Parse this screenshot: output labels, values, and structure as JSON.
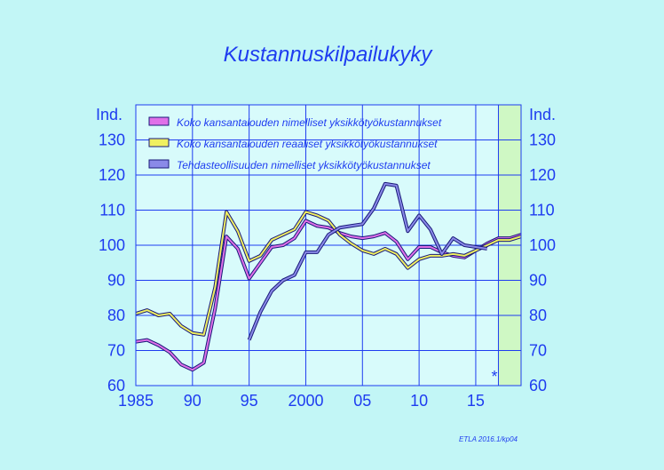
{
  "chart_data": {
    "type": "line",
    "title": "Kustannuskilpailukyky",
    "ylabel_left": "Ind.",
    "ylabel_right": "Ind.",
    "yticks": [
      60,
      70,
      80,
      90,
      100,
      110,
      120,
      130
    ],
    "ylim": [
      60,
      140
    ],
    "xlim": [
      1985,
      2019
    ],
    "xtick_values": [
      1985,
      1990,
      1995,
      2000,
      2005,
      2010,
      2015
    ],
    "xtick_labels": [
      "1985",
      "90",
      "95",
      "2000",
      "05",
      "10",
      "15"
    ],
    "forecast_start": 2017,
    "forecast_marker": "*",
    "grid": true,
    "legend_position": "top-left",
    "credit": "ETLA 2016.1/kp04",
    "colors": {
      "background": "#c2f6f6",
      "plot_background": "#d8fbfb",
      "forecast_shade": "#cff8c4",
      "grid": "#1e3cf0",
      "text": "#1e3cf0"
    },
    "series": [
      {
        "name": "Koko kansantalouden nimelliset yksikkötyökustannukset",
        "color": "#e070e8",
        "x": [
          1985,
          1986,
          1987,
          1988,
          1989,
          1990,
          1991,
          1992,
          1993,
          1994,
          1995,
          1996,
          1997,
          1998,
          1999,
          2000,
          2001,
          2002,
          2003,
          2004,
          2005,
          2006,
          2007,
          2008,
          2009,
          2010,
          2011,
          2012,
          2013,
          2014,
          2015,
          2016,
          2017,
          2018,
          2019
        ],
        "values": [
          72.5,
          73,
          71.5,
          69.5,
          66,
          64.5,
          66.5,
          82,
          102.5,
          99,
          90.5,
          95,
          99.5,
          100,
          102,
          107,
          105.5,
          105,
          103.5,
          102.5,
          102,
          102.5,
          103.5,
          101,
          96,
          99.5,
          99.5,
          98,
          97,
          96.5,
          98.5,
          100.5,
          102,
          102,
          103
        ]
      },
      {
        "name": "Koko kansantalouden reaaliset yksikkötyökustannukset",
        "color": "#f0f060",
        "x": [
          1985,
          1986,
          1987,
          1988,
          1989,
          1990,
          1991,
          1992,
          1993,
          1994,
          1995,
          1996,
          1997,
          1998,
          1999,
          2000,
          2001,
          2002,
          2003,
          2004,
          2005,
          2006,
          2007,
          2008,
          2009,
          2010,
          2011,
          2012,
          2013,
          2014,
          2015,
          2016,
          2017,
          2018,
          2019
        ],
        "values": [
          80.5,
          81.5,
          80,
          80.5,
          77,
          75,
          74.5,
          88,
          109.5,
          104,
          95.5,
          97,
          101.5,
          103,
          104.5,
          109.5,
          108.5,
          107,
          103,
          100.5,
          98.5,
          97.5,
          99,
          97.5,
          93.5,
          96,
          97,
          97,
          97.5,
          97,
          98.5,
          100,
          101.5,
          101.5,
          102.5
        ]
      },
      {
        "name": "Tehdasteollisuuden nimelliset yksikkötyökustannukset",
        "color": "#8a8ae8",
        "x": [
          1995,
          1996,
          1997,
          1998,
          1999,
          2000,
          2001,
          2002,
          2003,
          2004,
          2005,
          2006,
          2007,
          2008,
          2009,
          2010,
          2011,
          2012,
          2013,
          2014,
          2015,
          2016
        ],
        "values": [
          73,
          81,
          87,
          90,
          91.5,
          98,
          98,
          103,
          105,
          105.5,
          106,
          110.5,
          117.5,
          117,
          104,
          108.5,
          104.5,
          97.5,
          102,
          100,
          99.5,
          99
        ]
      }
    ]
  }
}
